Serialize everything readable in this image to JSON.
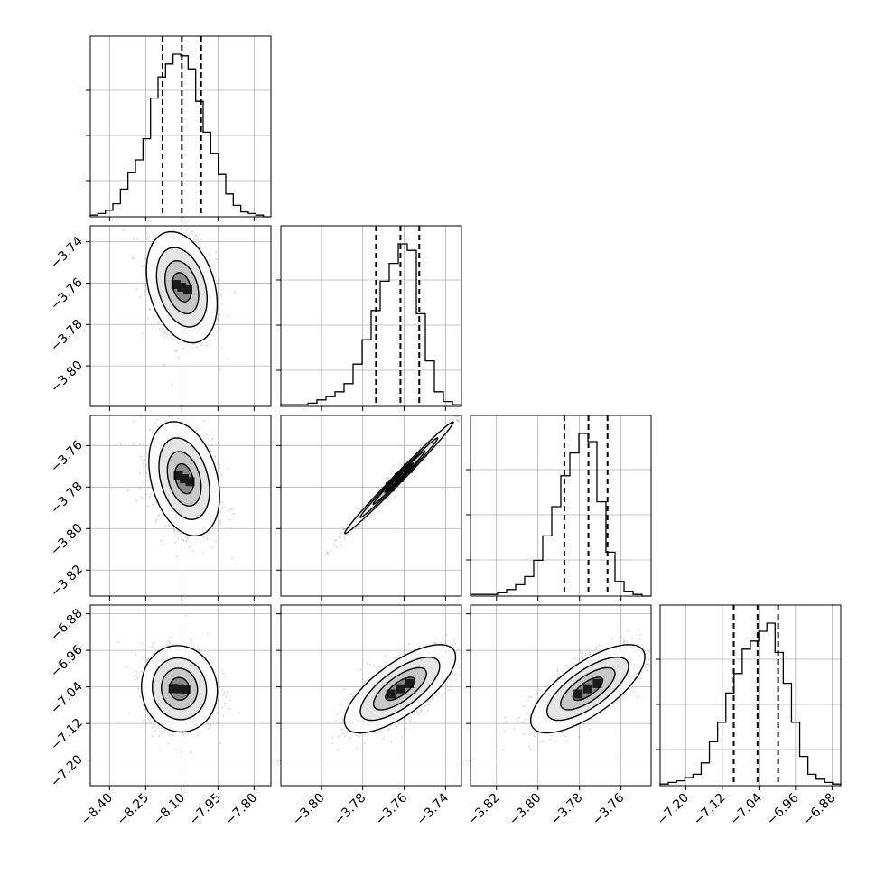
{
  "chart_data": {
    "type": "corner",
    "parameters": [
      {
        "ticks": [
          "−8.40",
          "−8.25",
          "−8.10",
          "−7.95",
          "−7.80"
        ],
        "tick_values": [
          -8.4,
          -8.25,
          -8.1,
          -7.95,
          -7.8
        ],
        "range": [
          -8.48,
          -7.73
        ],
        "quantiles": [
          -8.18,
          -8.1,
          -8.02
        ],
        "hist": [
          0.01,
          0.02,
          0.04,
          0.08,
          0.17,
          0.27,
          0.35,
          0.48,
          0.73,
          0.86,
          0.94,
          1.0,
          0.99,
          0.91,
          0.71,
          0.52,
          0.39,
          0.26,
          0.14,
          0.07,
          0.03,
          0.02,
          0.01,
          0.0
        ]
      },
      {
        "ticks": [
          "−3.80",
          "−3.78",
          "−3.76",
          "−3.74"
        ],
        "tick_values": [
          -3.8,
          -3.78,
          -3.76,
          -3.74
        ],
        "range": [
          -3.8196,
          -3.7323
        ],
        "quantiles": [
          -3.7736,
          -3.7618,
          -3.7527
        ],
        "hist": [
          0.01,
          0.01,
          0.01,
          0.02,
          0.04,
          0.06,
          0.09,
          0.14,
          0.26,
          0.41,
          0.59,
          0.77,
          0.88,
          1.0,
          0.96,
          0.57,
          0.28,
          0.09,
          0.03,
          0.01
        ]
      },
      {
        "ticks": [
          "−3.82",
          "−3.80",
          "−3.78",
          "−3.76"
        ],
        "tick_values": [
          -3.82,
          -3.8,
          -3.78,
          -3.76
        ],
        "range": [
          -3.8325,
          -3.7455
        ],
        "quantiles": [
          -3.7873,
          -3.7757,
          -3.7665
        ],
        "hist": [
          0.01,
          0.01,
          0.01,
          0.02,
          0.04,
          0.07,
          0.12,
          0.22,
          0.37,
          0.55,
          0.74,
          0.88,
          1.0,
          0.95,
          0.58,
          0.27,
          0.09,
          0.03,
          0.01,
          0.0
        ]
      },
      {
        "ticks": [
          "−7.20",
          "−7.12",
          "−7.04",
          "−6.96",
          "−6.88"
        ],
        "tick_values": [
          -7.2,
          -7.12,
          -7.04,
          -6.96,
          -6.88
        ],
        "range": [
          -7.256,
          -6.861
        ],
        "quantiles": [
          -7.095,
          -7.043,
          -6.998
        ],
        "hist": [
          0.01,
          0.02,
          0.03,
          0.05,
          0.07,
          0.14,
          0.27,
          0.39,
          0.57,
          0.69,
          0.84,
          0.89,
          0.95,
          1.0,
          0.82,
          0.63,
          0.39,
          0.18,
          0.07,
          0.04,
          0.02,
          0.01
        ]
      }
    ],
    "pairs": [
      {
        "x": 0,
        "y": 1,
        "center": [
          -8.1,
          -3.762
        ],
        "sx": 0.07,
        "sy": 0.0128,
        "rho": -0.3
      },
      {
        "x": 0,
        "y": 2,
        "center": [
          -8.09,
          -3.776
        ],
        "sx": 0.07,
        "sy": 0.0131,
        "rho": -0.3
      },
      {
        "x": 0,
        "y": 3,
        "center": [
          -8.11,
          -7.044
        ],
        "sx": 0.075,
        "sy": 0.045,
        "rho": -0.05
      },
      {
        "x": 1,
        "y": 2,
        "center": [
          -3.7625,
          -3.7755
        ],
        "sx": 0.0125,
        "sy": 0.0128,
        "rho": 0.993
      },
      {
        "x": 1,
        "y": 3,
        "center": [
          -3.762,
          -7.044
        ],
        "sx": 0.0128,
        "sy": 0.046,
        "rho": 0.72
      },
      {
        "x": 2,
        "y": 3,
        "center": [
          -3.776,
          -7.044
        ],
        "sx": 0.0131,
        "sy": 0.046,
        "rho": 0.72
      }
    ]
  }
}
